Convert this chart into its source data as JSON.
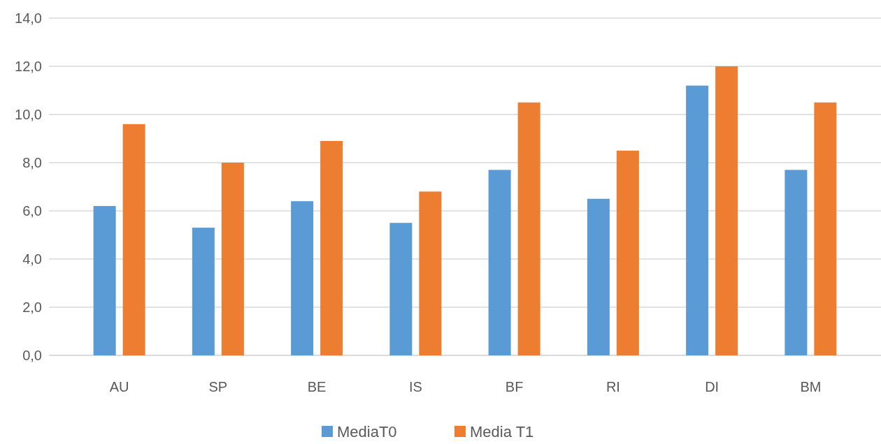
{
  "chart_data": {
    "type": "bar",
    "categories": [
      "AU",
      "SP",
      "BE",
      "IS",
      "BF",
      "RI",
      "DI",
      "BM"
    ],
    "series": [
      {
        "name": "MediaT0",
        "color": "#5b9bd5",
        "values": [
          6.2,
          5.3,
          6.4,
          5.5,
          7.7,
          6.5,
          11.2,
          7.7
        ]
      },
      {
        "name": "Media T1",
        "color": "#ed7d31",
        "values": [
          9.6,
          8.0,
          8.9,
          6.8,
          10.5,
          8.5,
          12.0,
          10.5
        ]
      }
    ],
    "ylim": [
      0,
      14
    ],
    "yticks": [
      {
        "value": 0,
        "label": "0,0"
      },
      {
        "value": 2,
        "label": "2,0"
      },
      {
        "value": 4,
        "label": "4,0"
      },
      {
        "value": 6,
        "label": "6,0"
      },
      {
        "value": 8,
        "label": "8,0"
      },
      {
        "value": 10,
        "label": "10,0"
      },
      {
        "value": 12,
        "label": "12,0"
      },
      {
        "value": 14,
        "label": "14,0"
      }
    ],
    "grid": "y",
    "legend": "bottom"
  }
}
